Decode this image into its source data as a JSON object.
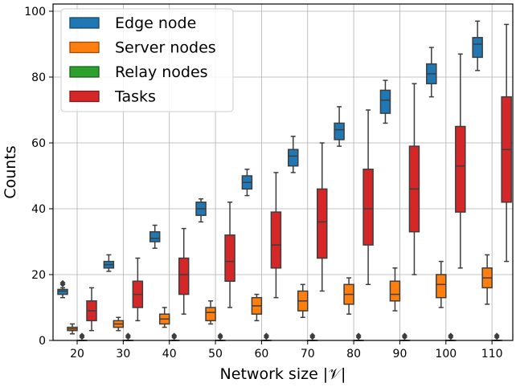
{
  "chart_data": {
    "type": "box",
    "xlabel": "Network size |𝒱|",
    "ylabel": "Counts",
    "ylim": [
      0,
      100
    ],
    "yticks": [
      0,
      20,
      40,
      60,
      80,
      100
    ],
    "categories": [
      "20",
      "30",
      "40",
      "50",
      "60",
      "70",
      "80",
      "90",
      "100",
      "110"
    ],
    "grid": true,
    "legend_position": "top-left",
    "series": [
      {
        "name": "Edge node",
        "color": "#1f77b4",
        "boxes": [
          {
            "whislo": 13,
            "q1": 14,
            "med": 15,
            "q3": 15.5,
            "whishi": 16,
            "fliers": [
              17,
              17.5
            ]
          },
          {
            "whislo": 21,
            "q1": 22,
            "med": 23,
            "q3": 24,
            "whishi": 26,
            "fliers": []
          },
          {
            "whislo": 28,
            "q1": 30,
            "med": 31,
            "q3": 33,
            "whishi": 35,
            "fliers": []
          },
          {
            "whislo": 36,
            "q1": 38,
            "med": 40,
            "q3": 42,
            "whishi": 43,
            "fliers": []
          },
          {
            "whislo": 44,
            "q1": 46,
            "med": 48,
            "q3": 50,
            "whishi": 52,
            "fliers": []
          },
          {
            "whislo": 51,
            "q1": 53,
            "med": 56,
            "q3": 58,
            "whishi": 62,
            "fliers": []
          },
          {
            "whislo": 59,
            "q1": 61,
            "med": 64,
            "q3": 66,
            "whishi": 71,
            "fliers": []
          },
          {
            "whislo": 66,
            "q1": 69,
            "med": 73,
            "q3": 76,
            "whishi": 79,
            "fliers": []
          },
          {
            "whislo": 74,
            "q1": 78,
            "med": 81,
            "q3": 84,
            "whishi": 89,
            "fliers": []
          },
          {
            "whislo": 82,
            "q1": 86,
            "med": 90,
            "q3": 92,
            "whishi": 97,
            "fliers": []
          }
        ]
      },
      {
        "name": "Server nodes",
        "color": "#ff7f0e",
        "boxes": [
          {
            "whislo": 2,
            "q1": 3,
            "med": 3.5,
            "q3": 4,
            "whishi": 5,
            "fliers": []
          },
          {
            "whislo": 3,
            "q1": 4,
            "med": 5,
            "q3": 6,
            "whishi": 7,
            "fliers": []
          },
          {
            "whislo": 4,
            "q1": 5,
            "med": 6.5,
            "q3": 8,
            "whishi": 10,
            "fliers": []
          },
          {
            "whislo": 5,
            "q1": 6,
            "med": 8.5,
            "q3": 10,
            "whishi": 12,
            "fliers": []
          },
          {
            "whislo": 6,
            "q1": 8,
            "med": 10.5,
            "q3": 13,
            "whishi": 14,
            "fliers": []
          },
          {
            "whislo": 7,
            "q1": 9,
            "med": 12,
            "q3": 15,
            "whishi": 17,
            "fliers": []
          },
          {
            "whislo": 8,
            "q1": 11,
            "med": 14,
            "q3": 17,
            "whishi": 19,
            "fliers": []
          },
          {
            "whislo": 9,
            "q1": 12,
            "med": 14,
            "q3": 18,
            "whishi": 22,
            "fliers": []
          },
          {
            "whislo": 10,
            "q1": 13,
            "med": 17,
            "q3": 20,
            "whishi": 24,
            "fliers": []
          },
          {
            "whislo": 11,
            "q1": 16,
            "med": 19,
            "q3": 22,
            "whishi": 26,
            "fliers": []
          }
        ]
      },
      {
        "name": "Relay nodes",
        "color": "#2ca02c",
        "boxes": [
          {
            "whislo": 0,
            "q1": 0,
            "med": 0,
            "q3": 0,
            "whishi": 0,
            "fliers": [
              1,
              1.5
            ]
          },
          {
            "whislo": 0,
            "q1": 0,
            "med": 0,
            "q3": 0,
            "whishi": 0,
            "fliers": [
              1,
              1.5
            ]
          },
          {
            "whislo": 0,
            "q1": 0,
            "med": 0,
            "q3": 0,
            "whishi": 0,
            "fliers": [
              1,
              1.5
            ]
          },
          {
            "whislo": 0,
            "q1": 0,
            "med": 0,
            "q3": 0,
            "whishi": 0,
            "fliers": [
              1,
              1.5
            ]
          },
          {
            "whislo": 0,
            "q1": 0,
            "med": 0,
            "q3": 0,
            "whishi": 0,
            "fliers": [
              1,
              1.5
            ]
          },
          {
            "whislo": 0,
            "q1": 0,
            "med": 0,
            "q3": 0,
            "whishi": 0,
            "fliers": [
              1,
              1.5
            ]
          },
          {
            "whislo": 0,
            "q1": 0,
            "med": 0,
            "q3": 0,
            "whishi": 0,
            "fliers": [
              1,
              1.5
            ]
          },
          {
            "whislo": 0,
            "q1": 0,
            "med": 0,
            "q3": 0,
            "whishi": 0,
            "fliers": [
              1,
              1.5
            ]
          },
          {
            "whislo": 0,
            "q1": 0,
            "med": 0,
            "q3": 0,
            "whishi": 0,
            "fliers": [
              1,
              1.5
            ]
          },
          {
            "whislo": 0,
            "q1": 0,
            "med": 0,
            "q3": 0,
            "whishi": 0,
            "fliers": [
              1,
              1.5
            ]
          }
        ]
      },
      {
        "name": "Tasks",
        "color": "#d62728",
        "boxes": [
          {
            "whislo": 3,
            "q1": 6,
            "med": 9,
            "q3": 12,
            "whishi": 16,
            "fliers": []
          },
          {
            "whislo": 6,
            "q1": 10,
            "med": 14,
            "q3": 18,
            "whishi": 25,
            "fliers": []
          },
          {
            "whislo": 8,
            "q1": 14,
            "med": 20,
            "q3": 25,
            "whishi": 34,
            "fliers": []
          },
          {
            "whislo": 10,
            "q1": 18,
            "med": 24,
            "q3": 32,
            "whishi": 42,
            "fliers": []
          },
          {
            "whislo": 13,
            "q1": 22,
            "med": 29,
            "q3": 39,
            "whishi": 51,
            "fliers": []
          },
          {
            "whislo": 15,
            "q1": 25,
            "med": 36,
            "q3": 46,
            "whishi": 60,
            "fliers": []
          },
          {
            "whislo": 17,
            "q1": 29,
            "med": 40,
            "q3": 52,
            "whishi": 70,
            "fliers": []
          },
          {
            "whislo": 20,
            "q1": 33,
            "med": 46,
            "q3": 59,
            "whishi": 78,
            "fliers": []
          },
          {
            "whislo": 22,
            "q1": 39,
            "med": 53,
            "q3": 65,
            "whishi": 87,
            "fliers": []
          },
          {
            "whislo": 24,
            "q1": 42,
            "med": 58,
            "q3": 74,
            "whishi": 96,
            "fliers": []
          }
        ]
      }
    ]
  }
}
